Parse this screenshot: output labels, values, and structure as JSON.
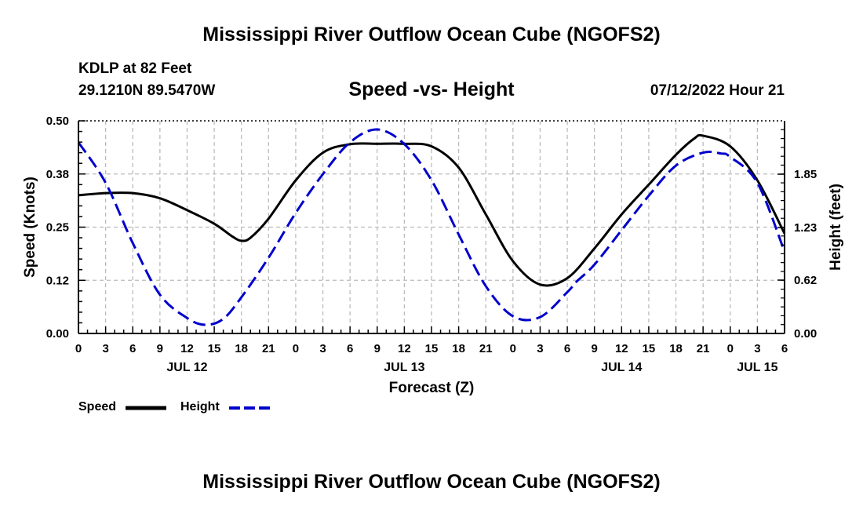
{
  "header": {
    "title": "Mississippi River Outflow Ocean Cube (NGOFS2)",
    "station": "KDLP at 82 Feet",
    "coords": "29.1210N  89.5470W",
    "subtitle": "Speed -vs- Height",
    "datetime": "07/12/2022 Hour 21"
  },
  "footer": {
    "title": "Mississippi River Outflow Ocean Cube (NGOFS2)"
  },
  "legend": {
    "speed_label": "Speed",
    "height_label": "Height"
  },
  "colors": {
    "speed": "#000000",
    "height": "#0000cc",
    "grid": "#bbbbbb"
  },
  "chart_data": {
    "type": "line",
    "xlabel": "Forecast (Z)",
    "ylabel_left": "Speed (Knots)",
    "ylabel_right": "Height (feet)",
    "x_unit": "hours since Jul 12 00Z",
    "xlim": [
      0,
      78
    ],
    "ylim_left": [
      0,
      0.5
    ],
    "ylim_right": [
      0,
      2.47
    ],
    "yticks_left": [
      "0.00",
      "0.12",
      "0.25",
      "0.38",
      "0.50"
    ],
    "yticks_left_values": [
      0,
      0.125,
      0.25,
      0.375,
      0.5
    ],
    "yticks_right": [
      "0.00",
      "0.62",
      "1.23",
      "1.85"
    ],
    "yticks_right_values": [
      0,
      0.62,
      1.23,
      1.85
    ],
    "xtick_labels": [
      "0",
      "3",
      "6",
      "9",
      "12",
      "15",
      "18",
      "21",
      "0",
      "3",
      "6",
      "9",
      "12",
      "15",
      "18",
      "21",
      "0",
      "3",
      "6",
      "9",
      "12",
      "15",
      "18",
      "21",
      "0",
      "3",
      "6"
    ],
    "date_labels": [
      {
        "label": "JUL 12",
        "hour": 12
      },
      {
        "label": "JUL 13",
        "hour": 36
      },
      {
        "label": "JUL 14",
        "hour": 60
      },
      {
        "label": "JUL 15",
        "hour": 75
      }
    ],
    "grid": true,
    "series": [
      {
        "name": "Speed",
        "axis": "left",
        "style": "solid",
        "x": [
          0,
          3,
          6,
          9,
          12,
          15,
          17,
          18,
          19,
          21,
          24,
          27,
          30,
          33,
          36,
          39,
          42,
          45,
          48,
          51,
          54,
          57,
          60,
          63,
          66,
          68,
          69,
          72,
          75,
          78
        ],
        "values": [
          0.325,
          0.33,
          0.33,
          0.318,
          0.29,
          0.258,
          0.228,
          0.218,
          0.225,
          0.27,
          0.36,
          0.425,
          0.445,
          0.446,
          0.446,
          0.44,
          0.39,
          0.28,
          0.17,
          0.115,
          0.13,
          0.2,
          0.28,
          0.35,
          0.42,
          0.458,
          0.465,
          0.44,
          0.36,
          0.235
        ]
      },
      {
        "name": "Height",
        "axis": "right",
        "style": "dashed",
        "x": [
          0,
          3,
          6,
          9,
          12,
          14,
          16,
          18,
          21,
          24,
          27,
          30,
          33,
          36,
          39,
          42,
          45,
          48,
          51,
          54,
          55,
          57,
          60,
          63,
          66,
          69,
          71,
          72,
          75,
          78
        ],
        "values": [
          2.22,
          1.75,
          1.05,
          0.45,
          0.18,
          0.1,
          0.17,
          0.42,
          0.88,
          1.4,
          1.85,
          2.22,
          2.37,
          2.2,
          1.78,
          1.15,
          0.55,
          0.2,
          0.19,
          0.48,
          0.6,
          0.8,
          1.2,
          1.6,
          1.95,
          2.1,
          2.09,
          2.05,
          1.75,
          0.95
        ]
      }
    ]
  }
}
